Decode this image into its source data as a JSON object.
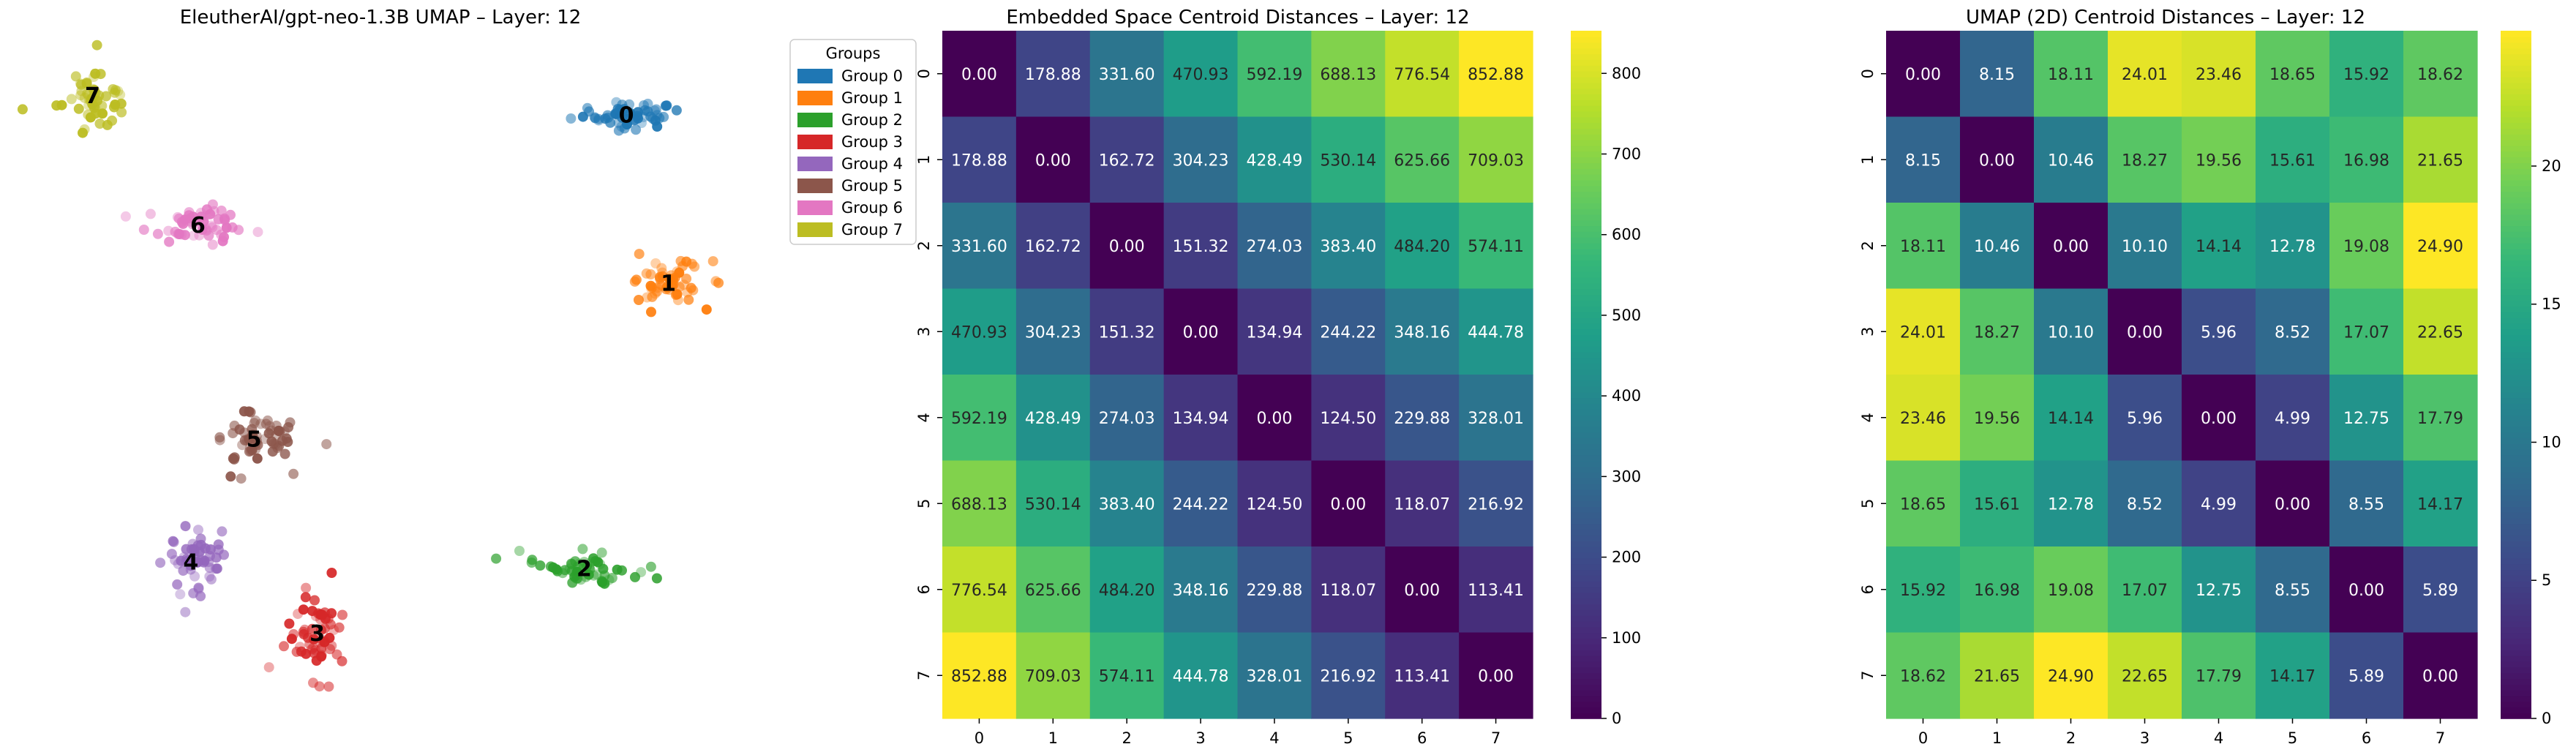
{
  "chart_data": [
    {
      "type": "scatter",
      "title": "EleutherAI/gpt-neo-1.3B UMAP – Layer: 12",
      "axes_visible": false,
      "legend": {
        "title": "Groups",
        "placement": "right-of-plot, top",
        "entries": [
          "Group 0",
          "Group 1",
          "Group 2",
          "Group 3",
          "Group 4",
          "Group 5",
          "Group 6",
          "Group 7"
        ]
      },
      "group_labels": [
        "0",
        "1",
        "2",
        "3",
        "4",
        "5",
        "6",
        "7"
      ],
      "group_colors": [
        "#1f77b4",
        "#ff7f0e",
        "#2ca02c",
        "#d62728",
        "#9467bd",
        "#8c564b",
        "#e377c2",
        "#bcbd22"
      ],
      "clusters": [
        {
          "group": "0",
          "center": [
            8.5,
            8.9
          ],
          "spread": [
            0.85,
            0.22
          ],
          "n": 55
        },
        {
          "group": "1",
          "center": [
            9.1,
            6.3
          ],
          "spread": [
            0.6,
            0.4
          ],
          "n": 55
        },
        {
          "group": "2",
          "center": [
            7.9,
            1.9
          ],
          "spread": [
            0.8,
            0.3
          ],
          "n": 55
        },
        {
          "group": "3",
          "center": [
            4.1,
            0.9
          ],
          "spread": [
            0.45,
            0.75
          ],
          "n": 60
        },
        {
          "group": "4",
          "center": [
            2.3,
            2.0
          ],
          "spread": [
            0.45,
            0.65
          ],
          "n": 55
        },
        {
          "group": "5",
          "center": [
            3.2,
            3.9
          ],
          "spread": [
            0.7,
            0.45
          ],
          "n": 60
        },
        {
          "group": "6",
          "center": [
            2.4,
            7.2
          ],
          "spread": [
            0.8,
            0.3
          ],
          "n": 55
        },
        {
          "group": "7",
          "center": [
            0.9,
            9.2
          ],
          "spread": [
            0.55,
            0.55
          ],
          "n": 55
        }
      ],
      "xlim": [
        0,
        10
      ],
      "ylim": [
        -0.5,
        10
      ]
    },
    {
      "type": "heatmap",
      "title": "Embedded Space Centroid Distances – Layer: 12",
      "x_ticks": [
        "0",
        "1",
        "2",
        "3",
        "4",
        "5",
        "6",
        "7"
      ],
      "y_ticks": [
        "0",
        "1",
        "2",
        "3",
        "4",
        "5",
        "6",
        "7"
      ],
      "colormap": "viridis",
      "vmin": 0,
      "vmax": 852.88,
      "colorbar_ticks": [
        "0",
        "100",
        "200",
        "300",
        "400",
        "500",
        "600",
        "700",
        "800"
      ],
      "colorbar_values": [
        0,
        100,
        200,
        300,
        400,
        500,
        600,
        700,
        800
      ],
      "values": [
        [
          0.0,
          178.88,
          331.6,
          470.93,
          592.19,
          688.13,
          776.54,
          852.88
        ],
        [
          178.88,
          0.0,
          162.72,
          304.23,
          428.49,
          530.14,
          625.66,
          709.03
        ],
        [
          331.6,
          162.72,
          0.0,
          151.32,
          274.03,
          383.4,
          484.2,
          574.11
        ],
        [
          470.93,
          304.23,
          151.32,
          0.0,
          134.94,
          244.22,
          348.16,
          444.78
        ],
        [
          592.19,
          428.49,
          274.03,
          134.94,
          0.0,
          124.5,
          229.88,
          328.01
        ],
        [
          688.13,
          530.14,
          383.4,
          244.22,
          124.5,
          0.0,
          118.07,
          216.92
        ],
        [
          776.54,
          625.66,
          484.2,
          348.16,
          229.88,
          118.07,
          0.0,
          113.41
        ],
        [
          852.88,
          709.03,
          574.11,
          444.78,
          328.01,
          216.92,
          113.41,
          0.0
        ]
      ]
    },
    {
      "type": "heatmap",
      "title": "UMAP (2D) Centroid Distances – Layer: 12",
      "x_ticks": [
        "0",
        "1",
        "2",
        "3",
        "4",
        "5",
        "6",
        "7"
      ],
      "y_ticks": [
        "0",
        "1",
        "2",
        "3",
        "4",
        "5",
        "6",
        "7"
      ],
      "colormap": "viridis",
      "vmin": 0,
      "vmax": 24.9,
      "colorbar_ticks": [
        "0",
        "5",
        "10",
        "15",
        "20"
      ],
      "colorbar_values": [
        0,
        5,
        10,
        15,
        20
      ],
      "values": [
        [
          0.0,
          8.15,
          18.11,
          24.01,
          23.46,
          18.65,
          15.92,
          18.62
        ],
        [
          8.15,
          0.0,
          10.46,
          18.27,
          19.56,
          15.61,
          16.98,
          21.65
        ],
        [
          18.11,
          10.46,
          0.0,
          10.1,
          14.14,
          12.78,
          19.08,
          24.9
        ],
        [
          24.01,
          18.27,
          10.1,
          0.0,
          5.96,
          8.52,
          17.07,
          22.65
        ],
        [
          23.46,
          19.56,
          14.14,
          5.96,
          0.0,
          4.99,
          12.75,
          17.79
        ],
        [
          18.65,
          15.61,
          12.78,
          8.52,
          4.99,
          0.0,
          8.55,
          14.17
        ],
        [
          15.92,
          16.98,
          19.08,
          17.07,
          12.75,
          8.55,
          0.0,
          5.89
        ],
        [
          18.62,
          21.65,
          24.9,
          22.65,
          17.79,
          14.17,
          5.89,
          0.0
        ]
      ]
    }
  ]
}
